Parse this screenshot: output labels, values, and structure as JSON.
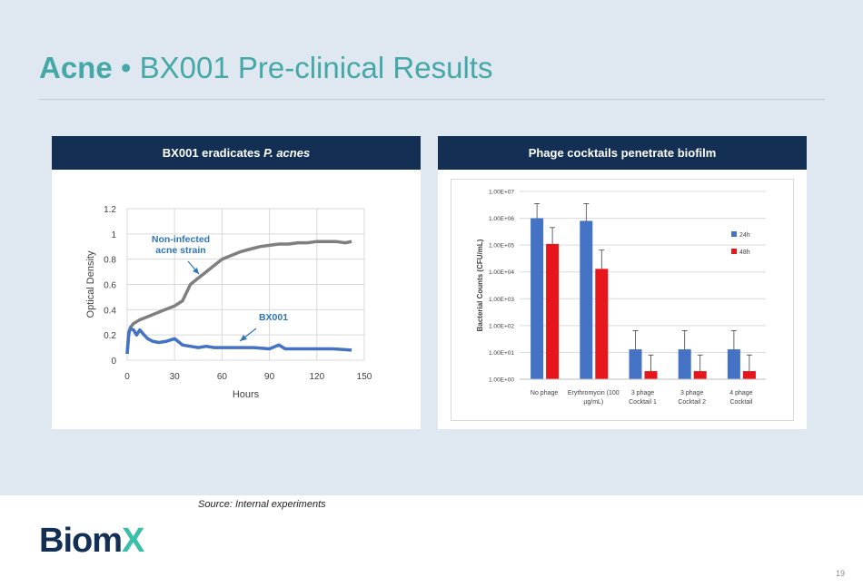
{
  "slide": {
    "title_bold": "Acne",
    "title_sep": "•",
    "title_rest": "BX001 Pre-clinical Results",
    "source": "Source:  Internal experiments",
    "page_number": "19",
    "logo_text_main": "Biom",
    "logo_text_x": "X",
    "colors": {
      "accent": "#46a8a6",
      "header": "#142f54",
      "background": "#dfe7f1",
      "logo": "#142f54",
      "logo_x": "#3bbfa8"
    }
  },
  "panel_left": {
    "heading_pre": "BX001  eradicates ",
    "heading_italic": "P. acnes"
  },
  "panel_right": {
    "heading": "Phage cocktails penetrate biofilm"
  },
  "chart_data": [
    {
      "type": "line",
      "xlabel": "Hours",
      "ylabel": "Optical Density",
      "xlim": [
        0,
        150
      ],
      "ylim": [
        0,
        1.2
      ],
      "xticks": [
        "0",
        "30",
        "60",
        "90",
        "120",
        "150"
      ],
      "yticks": [
        "0",
        "0.2",
        "0.4",
        "0.6",
        "0.8",
        "1",
        "1.2"
      ],
      "grid": true,
      "series": [
        {
          "name": "Non-infected acne strain",
          "color": "#7f7f7f",
          "x": [
            0,
            1,
            2,
            4,
            8,
            12,
            18,
            24,
            30,
            35,
            40,
            45,
            50,
            55,
            60,
            66,
            72,
            78,
            84,
            90,
            96,
            102,
            108,
            114,
            120,
            126,
            132,
            138,
            142
          ],
          "y": [
            0.05,
            0.2,
            0.26,
            0.29,
            0.32,
            0.34,
            0.37,
            0.4,
            0.43,
            0.47,
            0.6,
            0.65,
            0.7,
            0.75,
            0.8,
            0.83,
            0.86,
            0.88,
            0.9,
            0.91,
            0.92,
            0.92,
            0.93,
            0.93,
            0.94,
            0.94,
            0.94,
            0.93,
            0.94
          ]
        },
        {
          "name": "BX001",
          "color": "#4472c4",
          "x": [
            0,
            1,
            2,
            4,
            6,
            8,
            10,
            13,
            16,
            20,
            25,
            30,
            35,
            40,
            45,
            50,
            55,
            60,
            70,
            80,
            90,
            96,
            100,
            110,
            120,
            130,
            142
          ],
          "y": [
            0.05,
            0.22,
            0.25,
            0.24,
            0.2,
            0.24,
            0.21,
            0.17,
            0.15,
            0.14,
            0.15,
            0.17,
            0.12,
            0.11,
            0.1,
            0.11,
            0.1,
            0.1,
            0.1,
            0.1,
            0.09,
            0.12,
            0.09,
            0.09,
            0.09,
            0.09,
            0.08
          ]
        }
      ],
      "annotations": [
        {
          "text_line1": "Non-infected",
          "text_line2": "acne strain"
        },
        {
          "text": "BX001"
        }
      ]
    },
    {
      "type": "bar",
      "ylabel": "Bacterial Counts (CFU/mL)",
      "scale": "log",
      "ylim": [
        1,
        10000000
      ],
      "yticks": [
        "1.00E+00",
        "1.00E+01",
        "1.00E+02",
        "1.00E+03",
        "1.00E+04",
        "1.00E+05",
        "1.00E+06",
        "1.00E+07"
      ],
      "grid": true,
      "legend_position": "right",
      "categories": [
        [
          "No phage"
        ],
        [
          "Erythromycin (100",
          "µg/mL)"
        ],
        [
          "3 phage",
          "Cocktail 1"
        ],
        [
          "3 phage",
          "Cocktail 2"
        ],
        [
          "4 phage",
          "Cocktail"
        ]
      ],
      "series": [
        {
          "name": "24h",
          "color": "#4472c4",
          "values": [
            1000000,
            800000,
            13,
            13,
            13
          ],
          "error_upper": [
            3500000,
            3500000,
            65,
            65,
            65
          ]
        },
        {
          "name": "48h",
          "color": "#e6161b",
          "values": [
            110000,
            13000,
            2,
            2,
            2
          ],
          "error_upper": [
            450000,
            65000,
            8,
            8,
            8
          ]
        }
      ]
    }
  ]
}
